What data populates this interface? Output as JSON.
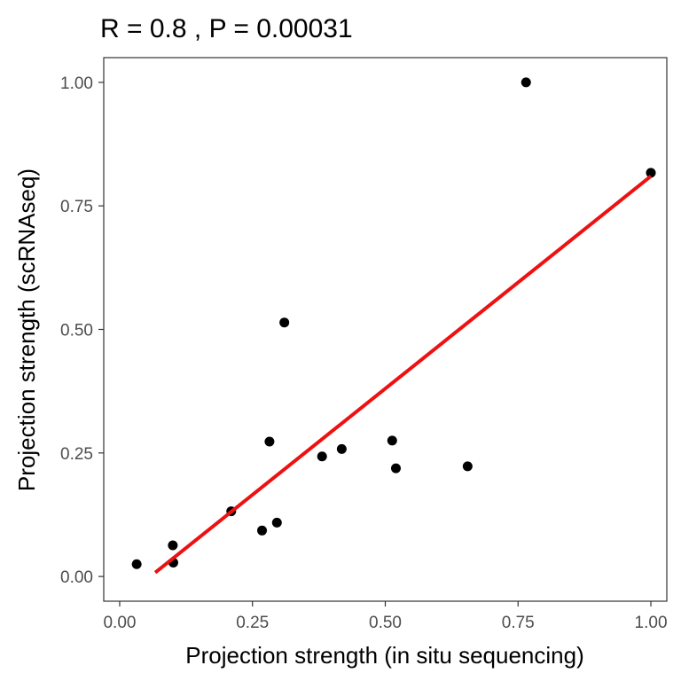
{
  "chart_data": {
    "type": "scatter",
    "title": "R = 0.8 , P = 0.00031",
    "xlabel": "Projection strength (in situ sequencing)",
    "ylabel": "Projection strength (scRNAseq)",
    "xlim": [
      -0.03,
      1.03
    ],
    "ylim": [
      -0.05,
      1.05
    ],
    "x_ticks": [
      0.0,
      0.25,
      0.5,
      0.75,
      1.0
    ],
    "x_tick_labels": [
      "0.00",
      "0.25",
      "0.50",
      "0.75",
      "1.00"
    ],
    "y_ticks": [
      0.0,
      0.25,
      0.5,
      0.75,
      1.0
    ],
    "y_tick_labels": [
      "0.00",
      "0.25",
      "0.50",
      "0.75",
      "1.00"
    ],
    "grid": false,
    "points": [
      {
        "x": 0.032,
        "y": 0.025
      },
      {
        "x": 0.101,
        "y": 0.028
      },
      {
        "x": 0.1,
        "y": 0.063
      },
      {
        "x": 0.21,
        "y": 0.132
      },
      {
        "x": 0.268,
        "y": 0.093
      },
      {
        "x": 0.296,
        "y": 0.109
      },
      {
        "x": 0.282,
        "y": 0.273
      },
      {
        "x": 0.31,
        "y": 0.514
      },
      {
        "x": 0.381,
        "y": 0.243
      },
      {
        "x": 0.418,
        "y": 0.258
      },
      {
        "x": 0.513,
        "y": 0.275
      },
      {
        "x": 0.52,
        "y": 0.219
      },
      {
        "x": 0.655,
        "y": 0.223
      },
      {
        "x": 0.765,
        "y": 1.0
      },
      {
        "x": 1.0,
        "y": 0.817
      }
    ],
    "point_color": "#000000",
    "regression_line": {
      "x": [
        0.067,
        1.0
      ],
      "y": [
        0.008,
        0.81
      ],
      "color": "#ee1111"
    }
  }
}
